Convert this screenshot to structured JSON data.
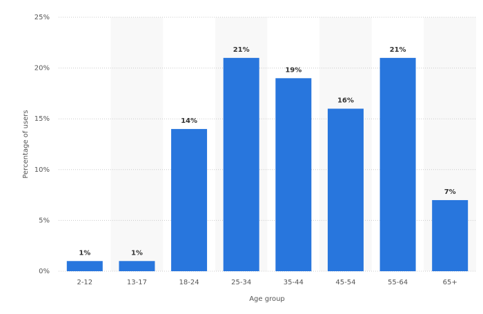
{
  "chart_data": {
    "type": "bar",
    "x_label": "Age group",
    "y_label": "Percentage of users",
    "categories": [
      "2-12",
      "13-17",
      "18-24",
      "25-34",
      "35-44",
      "45-54",
      "55-64",
      "65+"
    ],
    "values": [
      1,
      1,
      14,
      21,
      19,
      16,
      21,
      7
    ],
    "value_labels": [
      "1%",
      "1%",
      "14%",
      "21%",
      "19%",
      "16%",
      "21%",
      "7%"
    ],
    "color": "#2876dd",
    "ylim": [
      0,
      25
    ],
    "yticks": [
      {
        "value": 0,
        "label": "0%"
      },
      {
        "value": 5,
        "label": "5%"
      },
      {
        "value": 10,
        "label": "10%"
      },
      {
        "value": 15,
        "label": "15%"
      },
      {
        "value": 20,
        "label": "20%"
      },
      {
        "value": 25,
        "label": "25%"
      }
    ],
    "grid": true
  }
}
